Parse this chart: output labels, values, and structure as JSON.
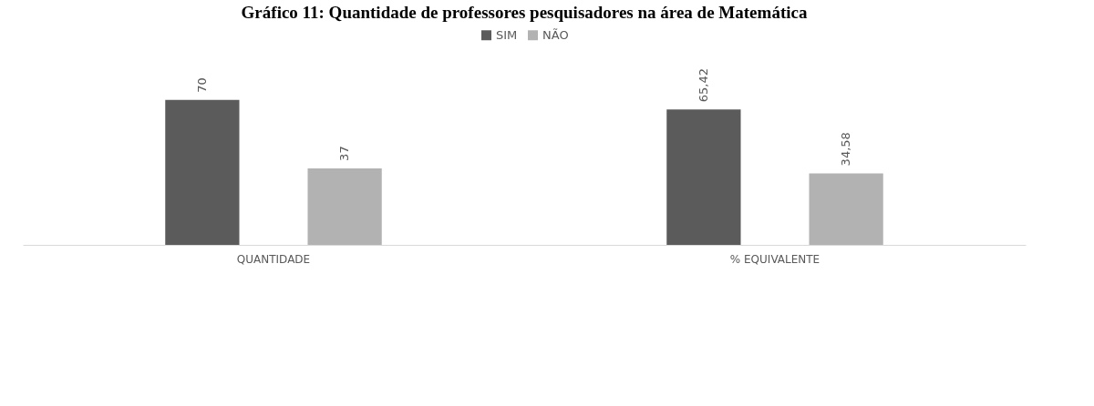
{
  "chart_data": {
    "type": "bar",
    "title": "Gráfico 11: Quantidade de professores pesquisadores na área de Matemática",
    "categories": [
      "QUANTIDADE",
      "% EQUIVALENTE"
    ],
    "series": [
      {
        "name": "SIM",
        "color": "#5b5b5b",
        "values": [
          70,
          65.42
        ],
        "value_labels": [
          "70",
          "65,42"
        ]
      },
      {
        "name": "NÃO",
        "color": "#b2b2b2",
        "values": [
          37,
          34.58
        ],
        "value_labels": [
          "37",
          "34,58"
        ]
      }
    ],
    "legend": "top",
    "tick_labels": "x"
  }
}
